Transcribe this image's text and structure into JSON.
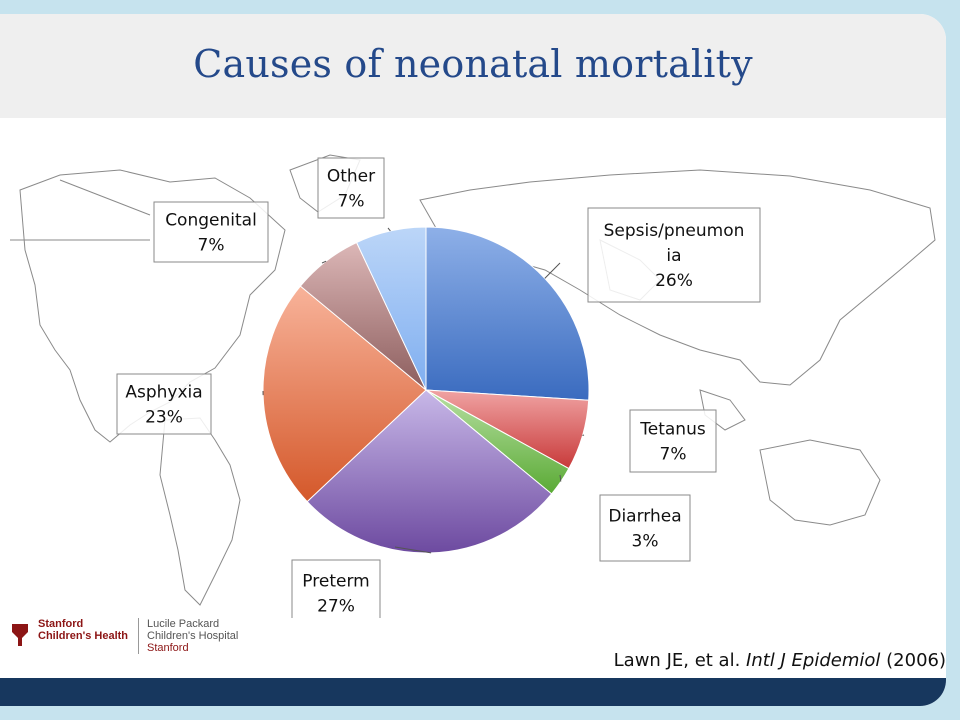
{
  "slide": {
    "title": "Causes of neonatal mortality",
    "citation_prefix": "Lawn JE, et al. ",
    "citation_journal": "Intl J Epidemiol",
    "citation_year": " (2006)"
  },
  "logo": {
    "line1a": "Stanford",
    "line1b": "Children's Health",
    "line2a": "Lucile Packard",
    "line2b": "Children's Hospital",
    "line2c": "Stanford"
  },
  "colors": {
    "title": "#24498a",
    "footer_bar": "#17375e",
    "background": "#c6e3ee"
  },
  "chart_data": {
    "type": "pie",
    "title": "",
    "slices": [
      {
        "label_lines": [
          "Sepsis/pneumon",
          "ia"
        ],
        "value": 26,
        "display": "26%",
        "color_light": "#8eb0e8",
        "color_dark": "#3a6bbf"
      },
      {
        "label_lines": [
          "Tetanus"
        ],
        "value": 7,
        "display": "7%",
        "color_light": "#f0a3a3",
        "color_dark": "#c83a3a"
      },
      {
        "label_lines": [
          "Diarrhea"
        ],
        "value": 3,
        "display": "3%",
        "color_light": "#b8e0a3",
        "color_dark": "#5aaa35"
      },
      {
        "label_lines": [
          "Preterm"
        ],
        "value": 27,
        "display": "27%",
        "color_light": "#c8b8e8",
        "color_dark": "#6d4aa0"
      },
      {
        "label_lines": [
          "Asphyxia"
        ],
        "value": 23,
        "display": "23%",
        "color_light": "#f8b39a",
        "color_dark": "#d4582a"
      },
      {
        "label_lines": [
          "Congenital"
        ],
        "value": 7,
        "display": "7%",
        "color_light": "#dcb7b7",
        "color_dark": "#8c5d5d"
      },
      {
        "label_lines": [
          "Other"
        ],
        "value": 7,
        "display": "7%",
        "color_light": "#bcd6f8",
        "color_dark": "#7faef0"
      }
    ]
  }
}
